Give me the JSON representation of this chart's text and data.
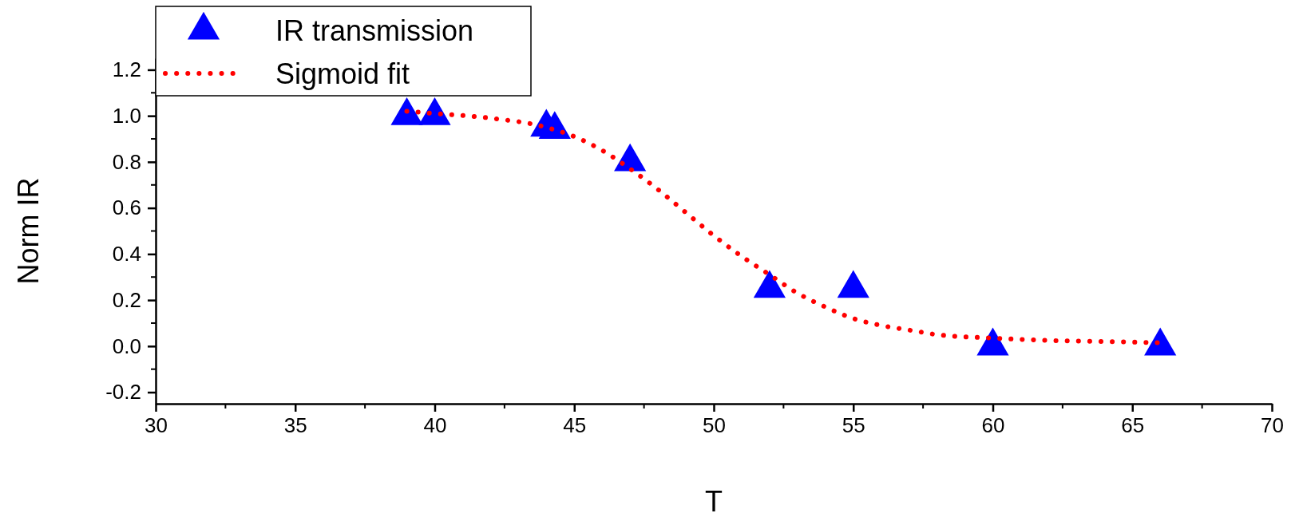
{
  "chart_data": {
    "type": "scatter",
    "xlabel": "T",
    "ylabel": "Norm IR",
    "xlim": [
      30,
      70
    ],
    "xticks": [
      30,
      35,
      40,
      45,
      50,
      55,
      60,
      65,
      70
    ],
    "ylim": [
      -0.25,
      1.25
    ],
    "yticks": [
      -0.2,
      {
        "value": 0,
        "label": "0.0"
      },
      0.2,
      0.4,
      0.6,
      0.8,
      {
        "value": 1,
        "label": "1.0"
      },
      1.2
    ],
    "grid": false,
    "legend": "top left",
    "series": [
      {
        "name": "IR transmission",
        "marker": "triangle",
        "color": "#0000ff",
        "x": [
          39,
          40,
          44,
          44.3,
          47,
          52,
          55,
          60,
          66
        ],
        "values": [
          1.0,
          1.0,
          0.95,
          0.94,
          0.8,
          0.25,
          0.25,
          0.0,
          0.0
        ]
      },
      {
        "name": "Sigmoid fit",
        "type": "line",
        "line_style": "dotted",
        "marker": "none",
        "color": "#ff0000",
        "x": [
          39,
          40,
          42,
          44,
          45,
          46,
          47,
          48,
          49,
          50,
          51,
          52,
          53,
          54,
          55,
          56,
          57,
          58,
          60,
          62,
          64,
          66
        ],
        "values": [
          1.02,
          1.01,
          0.99,
          0.95,
          0.91,
          0.85,
          0.77,
          0.68,
          0.58,
          0.48,
          0.39,
          0.31,
          0.23,
          0.17,
          0.12,
          0.09,
          0.07,
          0.05,
          0.035,
          0.025,
          0.02,
          0.015
        ]
      }
    ]
  }
}
